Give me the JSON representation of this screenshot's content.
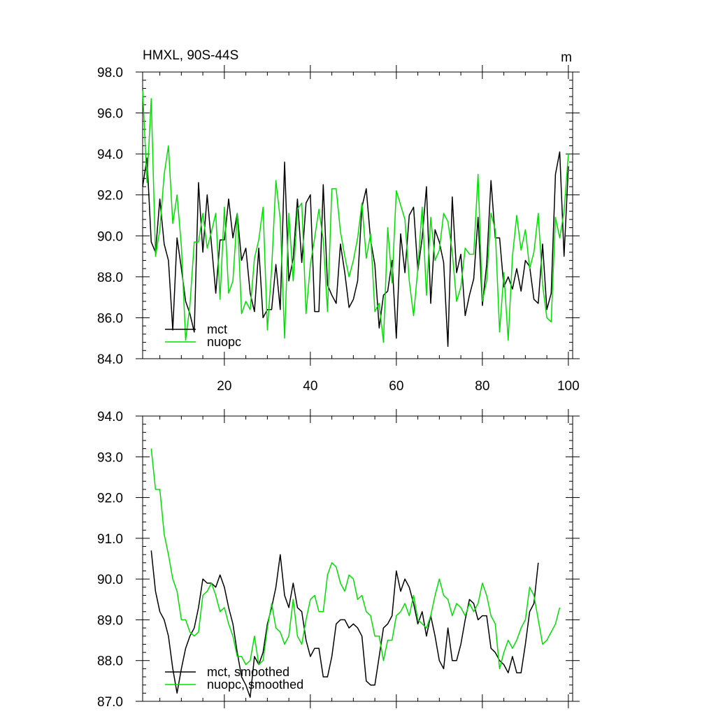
{
  "colors": {
    "mct": "#000000",
    "nuopc": "#00e000"
  },
  "chart_data": [
    {
      "type": "line",
      "title": "HMXL, 90S-44S",
      "units": "m",
      "xlim": [
        1,
        101
      ],
      "ylim": [
        84,
        98
      ],
      "xticks": [
        20,
        40,
        60,
        80,
        100
      ],
      "xtick_labels": [
        "20",
        "40",
        "60",
        "80",
        "100"
      ],
      "yticks": [
        84,
        86,
        88,
        90,
        92,
        94,
        96,
        98
      ],
      "ytick_labels": [
        "84.0",
        "86.0",
        "88.0",
        "90.0",
        "92.0",
        "94.0",
        "96.0",
        "98.0"
      ],
      "legend_position": "bottom-left",
      "x_start": 1,
      "series": [
        {
          "name": "mct",
          "color": "#000000",
          "values": [
            92.4,
            93.8,
            89.7,
            89.2,
            91.8,
            89.6,
            88.8,
            85.4,
            89.9,
            88.4,
            86.8,
            86.2,
            85.3,
            92.6,
            89.2,
            92.0,
            89.6,
            87.2,
            89.8,
            89.8,
            91.8,
            89.9,
            91.1,
            88.8,
            89.4,
            87.2,
            86.3,
            89.4,
            86.0,
            86.4,
            86.4,
            88.6,
            86.4,
            93.6,
            87.8,
            88.9,
            91.8,
            88.7,
            91.6,
            92.0,
            86.3,
            86.3,
            92.5,
            87.6,
            87.1,
            86.7,
            89.6,
            88.2,
            86.5,
            86.9,
            87.8,
            91.4,
            92.3,
            89.8,
            88.6,
            85.5,
            87.1,
            87.3,
            88.8,
            85.0,
            90.1,
            88.2,
            91.0,
            91.4,
            88.3,
            89.9,
            92.4,
            86.7,
            90.3,
            89.7,
            88.7,
            84.6,
            91.9,
            88.2,
            89.1,
            86.1,
            87.1,
            87.9,
            90.9,
            86.6,
            88.6,
            92.7,
            89.9,
            89.9,
            87.5,
            88.0,
            87.4,
            88.4,
            87.3,
            88.8,
            88.5,
            86.9,
            86.7,
            89.6,
            86.4,
            87.2,
            93.0,
            94.1,
            89.0,
            93.4
          ]
        },
        {
          "name": "nuopc",
          "color": "#00e000",
          "values": [
            97.1,
            92.6,
            96.7,
            89.0,
            90.3,
            93.0,
            94.4,
            90.6,
            92.0,
            89.5,
            84.9,
            86.6,
            89.7,
            89.7,
            91.1,
            89.4,
            90.2,
            91.1,
            86.9,
            91.4,
            87.2,
            87.8,
            91.1,
            86.2,
            86.8,
            86.4,
            88.9,
            89.8,
            91.4,
            85.4,
            88.4,
            92.7,
            90.8,
            85.0,
            91.1,
            87.8,
            91.3,
            91.6,
            86.2,
            88.6,
            89.9,
            91.3,
            89.8,
            86.3,
            92.3,
            92.3,
            90.2,
            89.0,
            88.0,
            88.8,
            89.9,
            91.6,
            88.9,
            90.1,
            86.3,
            86.7,
            84.8,
            90.4,
            87.7,
            92.2,
            91.5,
            90.8,
            87.8,
            86.1,
            88.4,
            91.4,
            87.1,
            90.9,
            88.8,
            89.3,
            91.1,
            90.7,
            89.2,
            86.8,
            87.5,
            89.4,
            89.1,
            89.1,
            93.0,
            86.8,
            87.8,
            91.1,
            90.3,
            85.3,
            88.2,
            84.9,
            89.0,
            91.0,
            89.3,
            90.3,
            88.4,
            89.2,
            91.1,
            87.6,
            86.0,
            85.8,
            90.9,
            89.9,
            91.2,
            94.0
          ]
        }
      ]
    },
    {
      "type": "line",
      "xlim": [
        1,
        101
      ],
      "ylim": [
        87,
        94
      ],
      "xticks": [
        20,
        40,
        60,
        80,
        100
      ],
      "yticks": [
        87,
        88,
        89,
        90,
        91,
        92,
        93,
        94
      ],
      "ytick_labels": [
        "87.0",
        "88.0",
        "89.0",
        "90.0",
        "91.0",
        "92.0",
        "93.0",
        "94.0"
      ],
      "legend_position": "bottom-left",
      "x_start": 3,
      "series": [
        {
          "name": "mct, smoothed",
          "color": "#000000",
          "values": [
            90.7,
            89.7,
            89.2,
            89.0,
            88.6,
            87.8,
            87.2,
            87.8,
            88.3,
            88.6,
            88.8,
            89.3,
            90.0,
            89.9,
            89.9,
            89.8,
            90.1,
            89.8,
            89.3,
            88.9,
            88.2,
            87.6,
            87.4,
            87.1,
            88.1,
            87.9,
            88.2,
            88.9,
            89.3,
            89.8,
            90.6,
            89.6,
            89.3,
            89.9,
            89.3,
            89.2,
            88.5,
            88.1,
            88.3,
            88.3,
            87.6,
            87.6,
            88.1,
            88.9,
            89.0,
            89.0,
            88.8,
            88.9,
            88.8,
            88.6,
            87.5,
            87.4,
            87.4,
            88.1,
            88.8,
            88.9,
            89.1,
            90.2,
            89.7,
            90.0,
            89.8,
            89.4,
            88.9,
            89.2,
            88.6,
            89.1,
            88.6,
            88.0,
            87.8,
            88.8,
            88.0,
            88.0,
            88.4,
            89.0,
            89.5,
            89.4,
            89.0,
            89.1,
            89.1,
            88.3,
            88.2,
            88.0,
            87.9,
            87.7,
            88.1,
            87.7,
            87.7,
            88.4,
            89.2,
            89.4,
            90.4
          ]
        },
        {
          "name": "nuopc, smoothed",
          "color": "#00e000",
          "values": [
            93.2,
            92.2,
            92.2,
            91.1,
            90.6,
            90.0,
            89.7,
            89.0,
            89.0,
            88.7,
            88.6,
            88.7,
            89.6,
            89.7,
            89.9,
            89.6,
            89.2,
            89.3,
            88.9,
            88.6,
            88.1,
            88.1,
            87.9,
            88.0,
            88.6,
            87.9,
            88.0,
            88.8,
            89.4,
            88.8,
            88.7,
            88.4,
            88.6,
            89.5,
            88.6,
            88.4,
            89.0,
            89.5,
            89.6,
            89.2,
            89.2,
            90.1,
            90.4,
            90.3,
            89.9,
            89.7,
            90.1,
            90.0,
            89.5,
            89.6,
            89.2,
            89.1,
            88.6,
            88.6,
            88.0,
            88.5,
            88.5,
            89.1,
            89.2,
            89.4,
            89.1,
            89.6,
            89.0,
            88.9,
            88.8,
            89.1,
            89.6,
            90.0,
            89.6,
            89.5,
            89.1,
            89.4,
            89.3,
            89.1,
            89.4,
            89.2,
            89.4,
            89.9,
            89.6,
            89.1,
            88.9,
            87.8,
            88.2,
            88.5,
            88.3,
            88.5,
            88.8,
            89.0,
            89.8,
            89.6,
            89.0,
            88.4,
            88.5,
            88.7,
            88.9,
            89.3
          ]
        }
      ]
    }
  ]
}
